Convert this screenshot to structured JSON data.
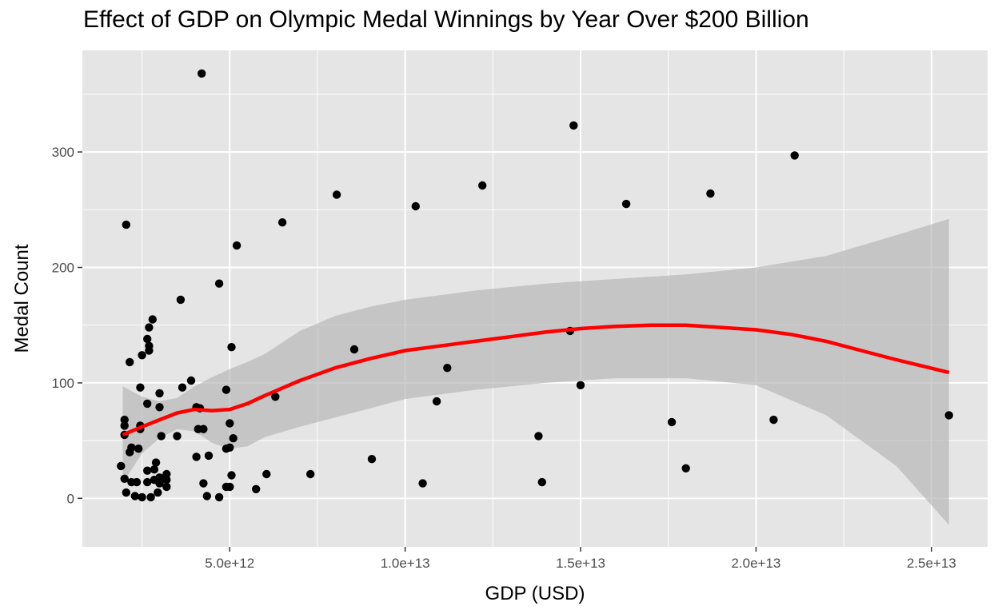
{
  "chart_data": {
    "type": "scatter",
    "title": "Effect of GDP on Olympic Medal Winnings by Year Over $200 Billion",
    "xlabel": "GDP (USD)",
    "ylabel": "Medal Count",
    "xlim": [
      800000000000,
      26600000000000
    ],
    "ylim": [
      -42,
      388
    ],
    "x_ticks": [
      5000000000000,
      10000000000000,
      15000000000000,
      20000000000000,
      25000000000000
    ],
    "x_tick_labels": [
      "5.0e+12",
      "1.0e+13",
      "1.5e+13",
      "2.0e+13",
      "2.5e+13"
    ],
    "y_ticks": [
      0,
      100,
      200,
      300
    ],
    "y_tick_labels": [
      "0",
      "100",
      "200",
      "300"
    ],
    "grid": true,
    "colors": {
      "panel": "#e5e5e5",
      "grid": "#ffffff",
      "points": "#000000",
      "smooth_line": "#ff0000",
      "ribbon": "#b3b3b3"
    },
    "points": [
      [
        1900000000000.0,
        28
      ],
      [
        2000000000000.0,
        55
      ],
      [
        2000000000000.0,
        63
      ],
      [
        2000000000000.0,
        68
      ],
      [
        2000000000000.0,
        17
      ],
      [
        2050000000000.0,
        237
      ],
      [
        2050000000000.0,
        5
      ],
      [
        2150000000000.0,
        118
      ],
      [
        2150000000000.0,
        40
      ],
      [
        2200000000000.0,
        44
      ],
      [
        2200000000000.0,
        14
      ],
      [
        2300000000000.0,
        2
      ],
      [
        2350000000000.0,
        14
      ],
      [
        2400000000000.0,
        43
      ],
      [
        2450000000000.0,
        60
      ],
      [
        2450000000000.0,
        63
      ],
      [
        2450000000000.0,
        96
      ],
      [
        2500000000000.0,
        124
      ],
      [
        2500000000000.0,
        1
      ],
      [
        2650000000000.0,
        138
      ],
      [
        2700000000000.0,
        148
      ],
      [
        2700000000000.0,
        132
      ],
      [
        2700000000000.0,
        128
      ],
      [
        2650000000000.0,
        82
      ],
      [
        2650000000000.0,
        24
      ],
      [
        2650000000000.0,
        14
      ],
      [
        2750000000000.0,
        1
      ],
      [
        2800000000000.0,
        155
      ],
      [
        2850000000000.0,
        25
      ],
      [
        2850000000000.0,
        16
      ],
      [
        2900000000000.0,
        31
      ],
      [
        2950000000000.0,
        5
      ],
      [
        3000000000000.0,
        91
      ],
      [
        3000000000000.0,
        79
      ],
      [
        3000000000000.0,
        18
      ],
      [
        3000000000000.0,
        13
      ],
      [
        3050000000000.0,
        54
      ],
      [
        3200000000000.0,
        21
      ],
      [
        3200000000000.0,
        16
      ],
      [
        3200000000000.0,
        10
      ],
      [
        3500000000000.0,
        54
      ],
      [
        3600000000000.0,
        172
      ],
      [
        3650000000000.0,
        96
      ],
      [
        3900000000000.0,
        102
      ],
      [
        4050000000000.0,
        36
      ],
      [
        4050000000000.0,
        79
      ],
      [
        4100000000000.0,
        60
      ],
      [
        4150000000000.0,
        78
      ],
      [
        4200000000000.0,
        368
      ],
      [
        4250000000000.0,
        60
      ],
      [
        4250000000000.0,
        13
      ],
      [
        4350000000000.0,
        2
      ],
      [
        4400000000000.0,
        37
      ],
      [
        4700000000000.0,
        186
      ],
      [
        4700000000000.0,
        1
      ],
      [
        4900000000000.0,
        94
      ],
      [
        4900000000000.0,
        43
      ],
      [
        4900000000000.0,
        10
      ],
      [
        5000000000000.0,
        65
      ],
      [
        5000000000000.0,
        44
      ],
      [
        5000000000000.0,
        10
      ],
      [
        5050000000000.0,
        131
      ],
      [
        5050000000000.0,
        20
      ],
      [
        5100000000000.0,
        52
      ],
      [
        5200000000000.0,
        219
      ],
      [
        5750000000000.0,
        8
      ],
      [
        6050000000000.0,
        21
      ],
      [
        6300000000000.0,
        88
      ],
      [
        6500000000000.0,
        239
      ],
      [
        7300000000000.0,
        21
      ],
      [
        8050000000000.0,
        263
      ],
      [
        8550000000000.0,
        129
      ],
      [
        9050000000000.0,
        34
      ],
      [
        10300000000000.0,
        253
      ],
      [
        10500000000000.0,
        13
      ],
      [
        10900000000000.0,
        84
      ],
      [
        11200000000000.0,
        113
      ],
      [
        12200000000000.0,
        271
      ],
      [
        13800000000000.0,
        54
      ],
      [
        13900000000000.0,
        14
      ],
      [
        14700000000000.0,
        145
      ],
      [
        14800000000000.0,
        323
      ],
      [
        15000000000000.0,
        98
      ],
      [
        16300000000000.0,
        255
      ],
      [
        17600000000000.0,
        66
      ],
      [
        18000000000000.0,
        26
      ],
      [
        18700000000000.0,
        264
      ],
      [
        20500000000000.0,
        68
      ],
      [
        21100000000000.0,
        297
      ],
      [
        25500000000000.0,
        72
      ]
    ],
    "smooth_line": [
      [
        1950000000000.0,
        55
      ],
      [
        2500000000000.0,
        62
      ],
      [
        3000000000000.0,
        68
      ],
      [
        3500000000000.0,
        74
      ],
      [
        4000000000000.0,
        77
      ],
      [
        4500000000000.0,
        76
      ],
      [
        5000000000000.0,
        77
      ],
      [
        5500000000000.0,
        82
      ],
      [
        6000000000000.0,
        89
      ],
      [
        7000000000000.0,
        102
      ],
      [
        8000000000000.0,
        113
      ],
      [
        9000000000000.0,
        121
      ],
      [
        10000000000000.0,
        128
      ],
      [
        11000000000000.0,
        132
      ],
      [
        12000000000000.0,
        136
      ],
      [
        13000000000000.0,
        140
      ],
      [
        14000000000000.0,
        144
      ],
      [
        15000000000000.0,
        147
      ],
      [
        16000000000000.0,
        149
      ],
      [
        17000000000000.0,
        150
      ],
      [
        18000000000000.0,
        150
      ],
      [
        19000000000000.0,
        148
      ],
      [
        20000000000000.0,
        146
      ],
      [
        21000000000000.0,
        142
      ],
      [
        22000000000000.0,
        136
      ],
      [
        23000000000000.0,
        128
      ],
      [
        24000000000000.0,
        120
      ],
      [
        25500000000000.0,
        109
      ]
    ],
    "ribbon_upper": [
      [
        1950000000000.0,
        97
      ],
      [
        2500000000000.0,
        88
      ],
      [
        3000000000000.0,
        84
      ],
      [
        3500000000000.0,
        87
      ],
      [
        4000000000000.0,
        97
      ],
      [
        4500000000000.0,
        105
      ],
      [
        5000000000000.0,
        112
      ],
      [
        5500000000000.0,
        118
      ],
      [
        6000000000000.0,
        125
      ],
      [
        7000000000000.0,
        145
      ],
      [
        8000000000000.0,
        158
      ],
      [
        9000000000000.0,
        166
      ],
      [
        10000000000000.0,
        172
      ],
      [
        12000000000000.0,
        180
      ],
      [
        14000000000000.0,
        186
      ],
      [
        16000000000000.0,
        190
      ],
      [
        18000000000000.0,
        194
      ],
      [
        20000000000000.0,
        200
      ],
      [
        22000000000000.0,
        210
      ],
      [
        24000000000000.0,
        228
      ],
      [
        25500000000000.0,
        242
      ]
    ],
    "ribbon_lower": [
      [
        1950000000000.0,
        13
      ],
      [
        2500000000000.0,
        39
      ],
      [
        3000000000000.0,
        52
      ],
      [
        3500000000000.0,
        60
      ],
      [
        4000000000000.0,
        58
      ],
      [
        4500000000000.0,
        48
      ],
      [
        5000000000000.0,
        43
      ],
      [
        5500000000000.0,
        45
      ],
      [
        6000000000000.0,
        53
      ],
      [
        7000000000000.0,
        62
      ],
      [
        8000000000000.0,
        70
      ],
      [
        9000000000000.0,
        78
      ],
      [
        10000000000000.0,
        86
      ],
      [
        12000000000000.0,
        94
      ],
      [
        14000000000000.0,
        100
      ],
      [
        16000000000000.0,
        104
      ],
      [
        18000000000000.0,
        104
      ],
      [
        20000000000000.0,
        98
      ],
      [
        22000000000000.0,
        72
      ],
      [
        24000000000000.0,
        28
      ],
      [
        25500000000000.0,
        -23
      ]
    ]
  }
}
